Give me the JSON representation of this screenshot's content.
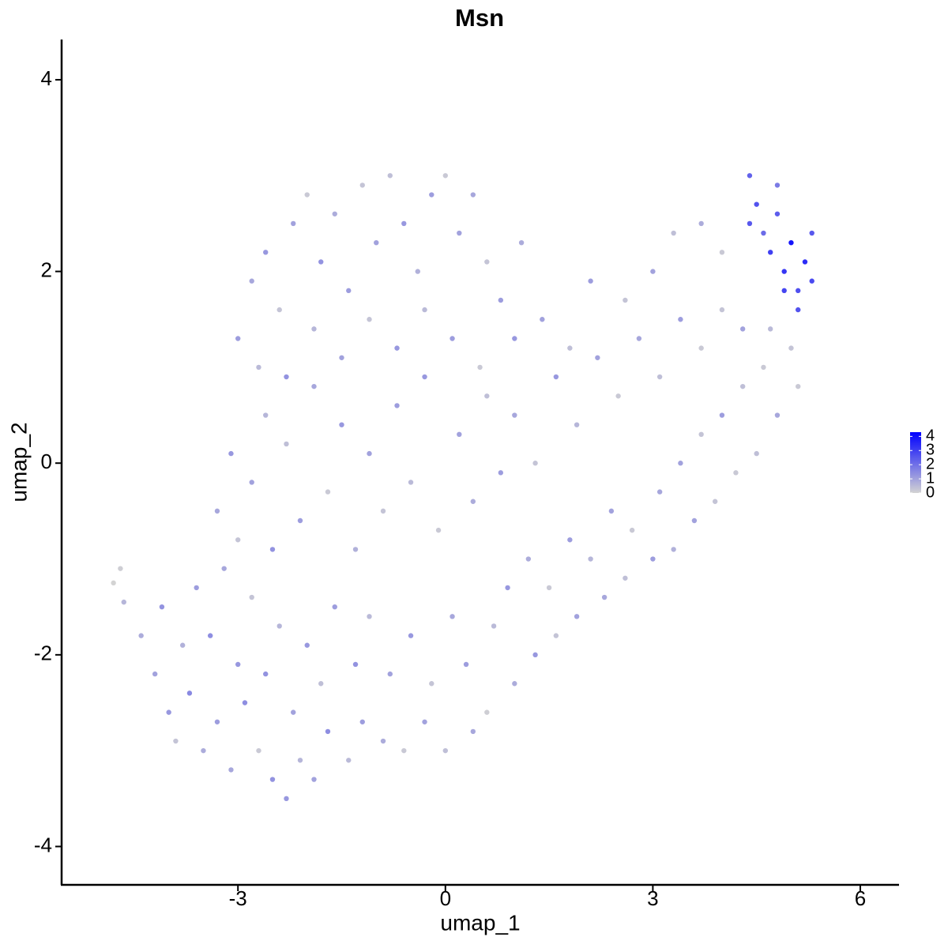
{
  "chart_data": {
    "type": "scatter",
    "title": "Msn",
    "x_label": "umap_1",
    "y_label": "umap_2",
    "xlim": [
      -5.55,
      6.56
    ],
    "ylim": [
      -4.4,
      4.42
    ],
    "xticks": [
      -3,
      0,
      3,
      6
    ],
    "yticks": [
      -4,
      -2,
      0,
      2,
      4
    ],
    "color_scale": {
      "low": "#d3d3d3",
      "high": "#0000ff",
      "lim": [
        0,
        4.3
      ],
      "ticks": [
        0,
        1,
        2,
        3,
        4
      ]
    },
    "x": [
      -4.2,
      -4.0,
      -3.9,
      -3.7,
      -3.5,
      -3.3,
      -3.1,
      -2.9,
      -2.7,
      -2.5,
      -2.3,
      -2.1,
      -1.9,
      -1.7,
      -1.4,
      -1.2,
      -0.9,
      -0.6,
      -0.3,
      0.0,
      0.4,
      0.6,
      1.0,
      1.3,
      1.6,
      1.9,
      2.3,
      2.6,
      3.0,
      3.3,
      3.6,
      3.9,
      4.2,
      4.5,
      4.8,
      5.1,
      5.0,
      4.7,
      -4.1,
      -3.8,
      -3.6,
      -3.4,
      -3.2,
      -3.0,
      -2.8,
      -2.6,
      -2.4,
      -2.2,
      -2.0,
      -1.8,
      -1.6,
      -1.3,
      -1.1,
      -0.8,
      -0.5,
      -0.2,
      0.1,
      0.3,
      0.7,
      0.9,
      1.2,
      1.5,
      1.8,
      2.1,
      2.4,
      2.7,
      3.1,
      3.4,
      3.7,
      4.0,
      4.3,
      4.6,
      -3.3,
      -3.1,
      -3.0,
      -2.8,
      -2.6,
      -2.5,
      -2.3,
      -2.1,
      -1.9,
      -1.7,
      -1.5,
      -1.3,
      -1.1,
      -0.9,
      -0.7,
      -0.5,
      -0.3,
      -0.1,
      0.2,
      0.4,
      0.6,
      0.8,
      1.0,
      1.3,
      1.6,
      1.9,
      2.2,
      2.5,
      2.8,
      3.1,
      3.4,
      3.7,
      4.0,
      4.3,
      -3.0,
      -2.8,
      -2.6,
      -2.4,
      -2.2,
      -2.0,
      -1.8,
      -1.6,
      -1.4,
      -1.2,
      -1.0,
      -0.8,
      -0.6,
      -0.4,
      -0.2,
      0.0,
      0.2,
      0.4,
      0.6,
      0.8,
      1.1,
      1.0,
      -2.7,
      -2.3,
      -1.9,
      -1.5,
      -1.1,
      -0.7,
      -0.3,
      0.1,
      0.5,
      1.4,
      1.8,
      2.1,
      2.6,
      3.0,
      3.3,
      3.7,
      4.0,
      4.4,
      4.5,
      4.6,
      4.7,
      4.8,
      4.9,
      5.0,
      5.1,
      5.2,
      5.3,
      5.3,
      4.9,
      4.4,
      5.1,
      4.8,
      -4.8,
      -4.7,
      -4.65,
      -4.4
    ],
    "y": [
      -2.2,
      -2.6,
      -2.9,
      -2.4,
      -3.0,
      -2.7,
      -3.2,
      -2.5,
      -3.0,
      -3.3,
      -3.5,
      -3.1,
      -3.3,
      -2.8,
      -3.1,
      -2.7,
      -2.9,
      -3.0,
      -2.7,
      -3.0,
      -2.8,
      -2.6,
      -2.3,
      -2.0,
      -1.8,
      -1.6,
      -1.4,
      -1.2,
      -1.0,
      -0.9,
      -0.6,
      -0.4,
      -0.1,
      0.1,
      0.5,
      0.8,
      1.2,
      1.4,
      -1.5,
      -1.9,
      -1.3,
      -1.8,
      -1.1,
      -2.1,
      -1.4,
      -2.2,
      -1.7,
      -2.6,
      -1.9,
      -2.3,
      -1.5,
      -2.1,
      -1.6,
      -2.2,
      -1.8,
      -2.3,
      -1.6,
      -2.1,
      -1.7,
      -1.3,
      -1.0,
      -1.3,
      -0.8,
      -1.0,
      -0.5,
      -0.7,
      -0.3,
      0.0,
      0.3,
      0.5,
      0.8,
      1.0,
      -0.5,
      0.1,
      -0.8,
      -0.2,
      0.5,
      -0.9,
      0.2,
      -0.6,
      0.8,
      -0.3,
      0.4,
      -0.9,
      0.1,
      -0.5,
      0.6,
      -0.2,
      0.9,
      -0.7,
      0.3,
      -0.4,
      0.7,
      -0.1,
      0.5,
      0.0,
      0.9,
      0.4,
      1.1,
      0.7,
      1.3,
      0.9,
      1.5,
      1.2,
      1.6,
      1.4,
      1.3,
      1.9,
      2.2,
      1.6,
      2.5,
      2.8,
      2.1,
      2.6,
      1.8,
      2.9,
      2.3,
      3.0,
      2.5,
      2.0,
      2.8,
      3.0,
      2.4,
      2.8,
      2.1,
      1.7,
      2.3,
      1.3,
      1.0,
      0.9,
      1.4,
      1.1,
      1.5,
      1.2,
      1.6,
      1.3,
      1.0,
      1.5,
      1.2,
      1.9,
      1.7,
      2.0,
      2.4,
      2.5,
      2.2,
      3.0,
      2.7,
      2.4,
      2.2,
      2.6,
      2.0,
      2.3,
      1.8,
      2.1,
      2.4,
      1.9,
      1.8,
      2.5,
      1.6,
      2.9,
      -1.25,
      -1.1,
      -1.45,
      -1.8
    ],
    "values": [
      1,
      1.2,
      0.3,
      1.5,
      0.8,
      1.1,
      0.9,
      1.4,
      0.2,
      1.3,
      1.2,
      0.6,
      1.0,
      1.4,
      0.5,
      1.1,
      0.8,
      0.2,
      1.0,
      0.4,
      0.9,
      0.1,
      0.8,
      1.2,
      0.3,
      1.0,
      0.9,
      0.4,
      1.1,
      0.7,
      1.0,
      0.3,
      0.2,
      0.4,
      0.9,
      0.2,
      0.3,
      0.5,
      1.3,
      0.7,
      1.1,
      1.4,
      0.9,
      1.2,
      0.3,
      1.3,
      0.6,
      1.0,
      1.2,
      0.4,
      1.1,
      1.3,
      0.5,
      1.0,
      1.2,
      0.3,
      0.9,
      1.1,
      0.5,
      1.2,
      0.8,
      0.2,
      1.1,
      0.6,
      1.0,
      0.2,
      0.9,
      1.0,
      0.3,
      1.1,
      0.4,
      0.2,
      0.9,
      1.2,
      0.3,
      1.0,
      0.6,
      1.3,
      0.4,
      1.1,
      0.9,
      0.2,
      1.2,
      0.7,
      1.0,
      0.3,
      1.1,
      0.5,
      1.2,
      0.2,
      1.0,
      0.8,
      0.4,
      1.1,
      0.9,
      0.3,
      1.2,
      0.6,
      1.0,
      0.2,
      0.9,
      0.4,
      1.1,
      0.2,
      0.3,
      1.0,
      1.1,
      0.9,
      1.2,
      0.3,
      1.0,
      0.2,
      1.3,
      0.8,
      1.1,
      0.3,
      1.0,
      0.4,
      1.2,
      0.7,
      1.1,
      0.2,
      1.0,
      0.9,
      0.3,
      1.1,
      0.8,
      1.2,
      0.5,
      1.3,
      0.6,
      1.0,
      0.3,
      1.2,
      0.5,
      1.1,
      0.2,
      1.0,
      0.4,
      1.1,
      0.3,
      1.0,
      0.4,
      0.8,
      0.2,
      2.3,
      2.6,
      2.1,
      3.0,
      2.4,
      3.2,
      3.9,
      2.7,
      3.4,
      2.5,
      2.8,
      2.9,
      2.5,
      2.6,
      1.8,
      0,
      0.1,
      0.6,
      0.8
    ]
  }
}
